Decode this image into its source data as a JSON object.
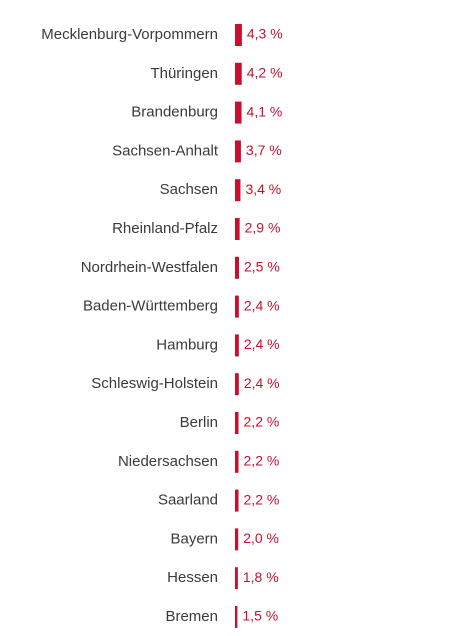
{
  "chart_data": {
    "type": "bar",
    "orientation": "horizontal",
    "categories": [
      "Mecklenburg-Vorpommern",
      "Thüringen",
      "Brandenburg",
      "Sachsen-Anhalt",
      "Sachsen",
      "Rheinland-Pfalz",
      "Nordrhein-Westfalen",
      "Baden-Württemberg",
      "Hamburg",
      "Schleswig-Holstein",
      "Berlin",
      "Niedersachsen",
      "Saarland",
      "Bayern",
      "Hessen",
      "Bremen"
    ],
    "values": [
      4.3,
      4.2,
      4.1,
      3.7,
      3.4,
      2.9,
      2.5,
      2.4,
      2.4,
      2.4,
      2.2,
      2.2,
      2.2,
      2.0,
      1.8,
      1.5
    ],
    "value_labels": [
      "4,3 %",
      "4,2 %",
      "4,1 %",
      "3,7 %",
      "3,4 %",
      "2,9 %",
      "2,5 %",
      "2,4 %",
      "2,4 %",
      "2,4 %",
      "2,2 %",
      "2,2 %",
      "2,2 %",
      "2,0 %",
      "1,8 %",
      "1,5 %"
    ],
    "colors": {
      "bar": "#c8102e",
      "value_text": "#c8102e",
      "category_text": "#3a3a3a"
    },
    "grid": false,
    "legend": "none"
  }
}
